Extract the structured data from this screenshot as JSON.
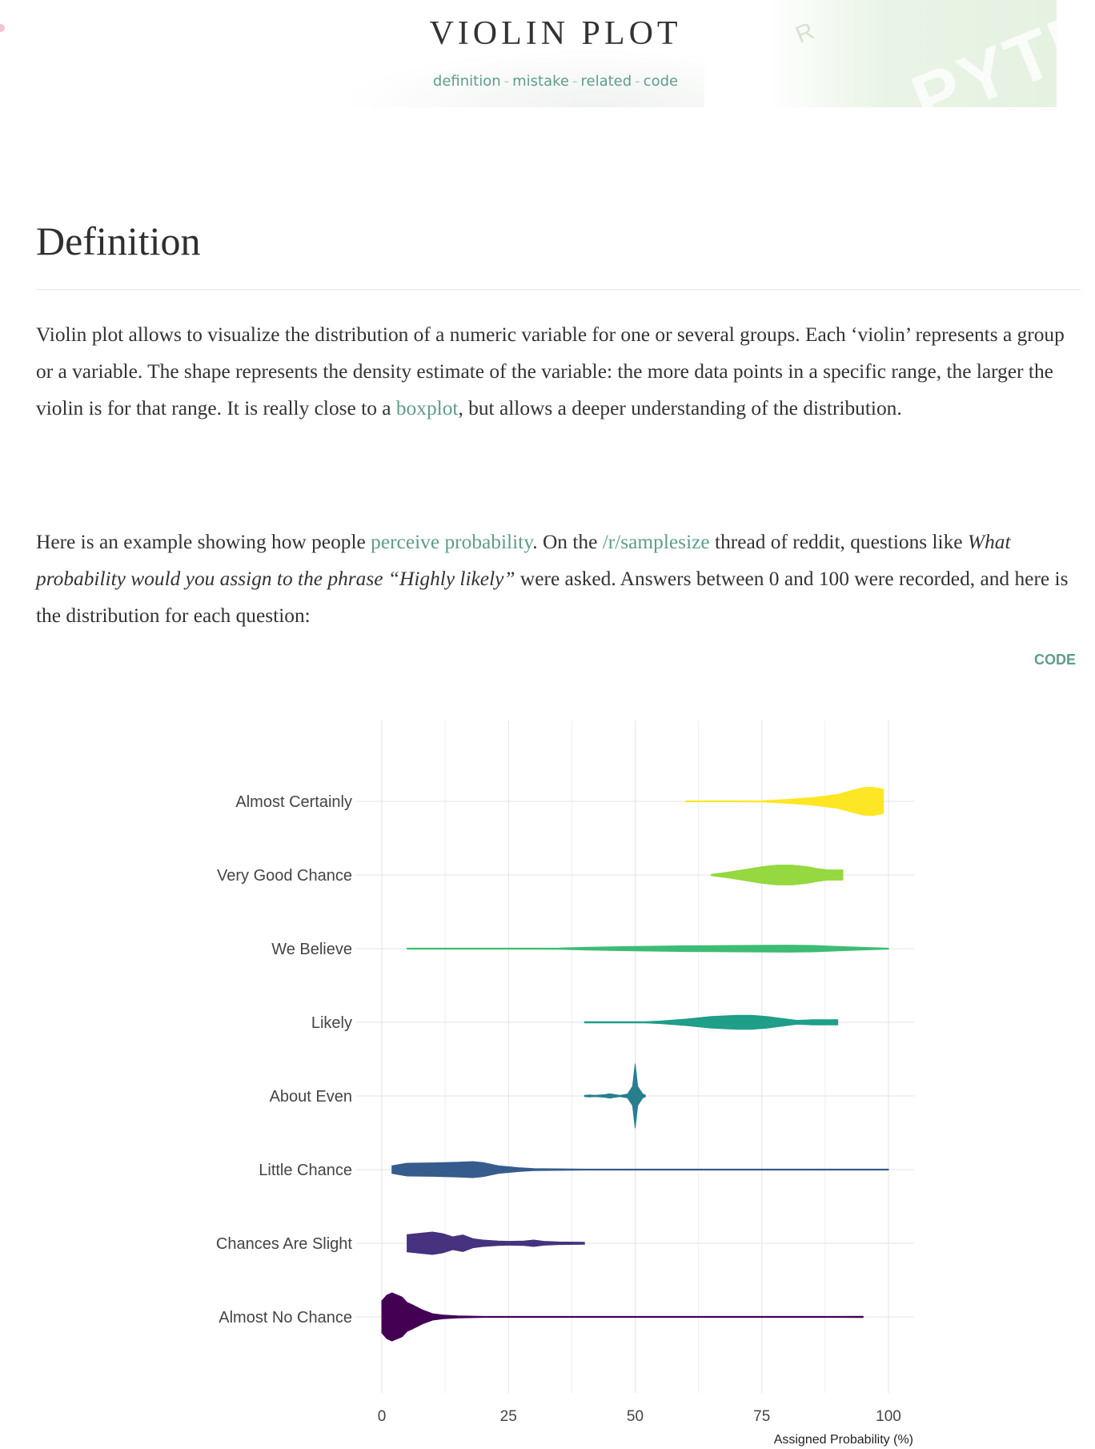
{
  "header": {
    "title": "VIOLIN PLOT",
    "nav": [
      {
        "label": "definition"
      },
      {
        "label": "mistake"
      },
      {
        "label": "related"
      },
      {
        "label": "code"
      }
    ],
    "separator": "-"
  },
  "definition": {
    "heading": "Definition",
    "para1": {
      "text_before": "Violin plot allows to visualize the distribution of a numeric variable for one or several groups. Each ‘violin’ represents a group or a variable. The shape represents the density estimate of the variable: the more data points in a specific range, the larger the violin is for that range. It is really close to a ",
      "link": "boxplot",
      "text_after": ", but allows a deeper understanding of the distribution."
    },
    "para2": {
      "text_1": "Here is an example showing how people ",
      "link_1": "perceive probability",
      "text_2": ". On the ",
      "link_2": "/r/samplesize",
      "text_3": " thread of reddit, questions like ",
      "italic": "What probability would you assign to the phrase “Highly likely”",
      "text_4": " were asked. Answers between 0 and 100 were recorded, and here is the distribution for each question:"
    },
    "code_button": "CODE"
  },
  "chart_data": {
    "type": "violin",
    "orientation": "horizontal",
    "xlabel": "Assigned Probability (%)",
    "xlim": [
      0,
      100
    ],
    "x_ticks": [
      0,
      25,
      50,
      75,
      100
    ],
    "grid": true,
    "categories": [
      "Almost Certainly",
      "Very Good Chance",
      "We Believe",
      "Likely",
      "About Even",
      "Little Chance",
      "Chances Are Slight",
      "Almost No Chance"
    ],
    "series": [
      {
        "category": "Almost Certainly",
        "color": "#fde725",
        "range": [
          60,
          99
        ],
        "density": [
          [
            60,
            0.01
          ],
          [
            70,
            0.01
          ],
          [
            75,
            0.02
          ],
          [
            80,
            0.06
          ],
          [
            85,
            0.12
          ],
          [
            90,
            0.22
          ],
          [
            93,
            0.35
          ],
          [
            95,
            0.43
          ],
          [
            97,
            0.44
          ],
          [
            99,
            0.38
          ]
        ]
      },
      {
        "category": "Very Good Chance",
        "color": "#95d840",
        "range": [
          65,
          91
        ],
        "density": [
          [
            65,
            0.02
          ],
          [
            68,
            0.08
          ],
          [
            72,
            0.18
          ],
          [
            75,
            0.26
          ],
          [
            78,
            0.31
          ],
          [
            81,
            0.31
          ],
          [
            84,
            0.26
          ],
          [
            86,
            0.2
          ],
          [
            88,
            0.16
          ],
          [
            91,
            0.16
          ]
        ]
      },
      {
        "category": "We Believe",
        "color": "#3dbc74",
        "range": [
          5,
          100
        ],
        "density": [
          [
            5,
            0.005
          ],
          [
            20,
            0.01
          ],
          [
            35,
            0.02
          ],
          [
            40,
            0.04
          ],
          [
            50,
            0.07
          ],
          [
            60,
            0.09
          ],
          [
            70,
            0.1
          ],
          [
            80,
            0.11
          ],
          [
            85,
            0.1
          ],
          [
            90,
            0.07
          ],
          [
            95,
            0.04
          ],
          [
            100,
            0.01
          ]
        ]
      },
      {
        "category": "Likely",
        "color": "#1f9e89",
        "range": [
          40,
          90
        ],
        "density": [
          [
            40,
            0.02
          ],
          [
            52,
            0.02
          ],
          [
            55,
            0.04
          ],
          [
            60,
            0.1
          ],
          [
            65,
            0.18
          ],
          [
            70,
            0.22
          ],
          [
            73,
            0.22
          ],
          [
            76,
            0.18
          ],
          [
            80,
            0.1
          ],
          [
            82,
            0.06
          ],
          [
            85,
            0.08
          ],
          [
            90,
            0.08
          ]
        ]
      },
      {
        "category": "About Even",
        "color": "#277f8e",
        "range": [
          40,
          52
        ],
        "density": [
          [
            40,
            0.02
          ],
          [
            41,
            0.03
          ],
          [
            42,
            0.02
          ],
          [
            44,
            0.04
          ],
          [
            45,
            0.07
          ],
          [
            46,
            0.04
          ],
          [
            47,
            0.02
          ],
          [
            48.5,
            0.06
          ],
          [
            49.5,
            0.3
          ],
          [
            50,
            1.0
          ],
          [
            50.5,
            0.3
          ],
          [
            51.5,
            0.06
          ],
          [
            52,
            0.03
          ]
        ]
      },
      {
        "category": "Little Chance",
        "color": "#365c8d",
        "range": [
          2,
          100
        ],
        "density": [
          [
            2,
            0.12
          ],
          [
            5,
            0.2
          ],
          [
            10,
            0.21
          ],
          [
            15,
            0.23
          ],
          [
            18,
            0.25
          ],
          [
            20,
            0.22
          ],
          [
            23,
            0.12
          ],
          [
            27,
            0.06
          ],
          [
            30,
            0.03
          ],
          [
            40,
            0.01
          ],
          [
            60,
            0.01
          ],
          [
            100,
            0.01
          ]
        ]
      },
      {
        "category": "Chances Are Slight",
        "color": "#46327e",
        "range": [
          5,
          40
        ],
        "density": [
          [
            5,
            0.27
          ],
          [
            8,
            0.32
          ],
          [
            10,
            0.35
          ],
          [
            12,
            0.3
          ],
          [
            14,
            0.2
          ],
          [
            16,
            0.26
          ],
          [
            18,
            0.14
          ],
          [
            20,
            0.1
          ],
          [
            23,
            0.07
          ],
          [
            25,
            0.06
          ],
          [
            28,
            0.07
          ],
          [
            30,
            0.1
          ],
          [
            32,
            0.06
          ],
          [
            35,
            0.04
          ],
          [
            40,
            0.03
          ]
        ]
      },
      {
        "category": "Almost No Chance",
        "color": "#440154",
        "range": [
          0,
          95
        ],
        "density": [
          [
            0,
            0.5
          ],
          [
            1,
            0.68
          ],
          [
            2,
            0.75
          ],
          [
            4,
            0.62
          ],
          [
            5,
            0.45
          ],
          [
            6,
            0.38
          ],
          [
            8,
            0.22
          ],
          [
            10,
            0.1
          ],
          [
            12,
            0.06
          ],
          [
            15,
            0.03
          ],
          [
            20,
            0.01
          ],
          [
            50,
            0.01
          ],
          [
            90,
            0.01
          ],
          [
            95,
            0.02
          ]
        ]
      }
    ]
  }
}
